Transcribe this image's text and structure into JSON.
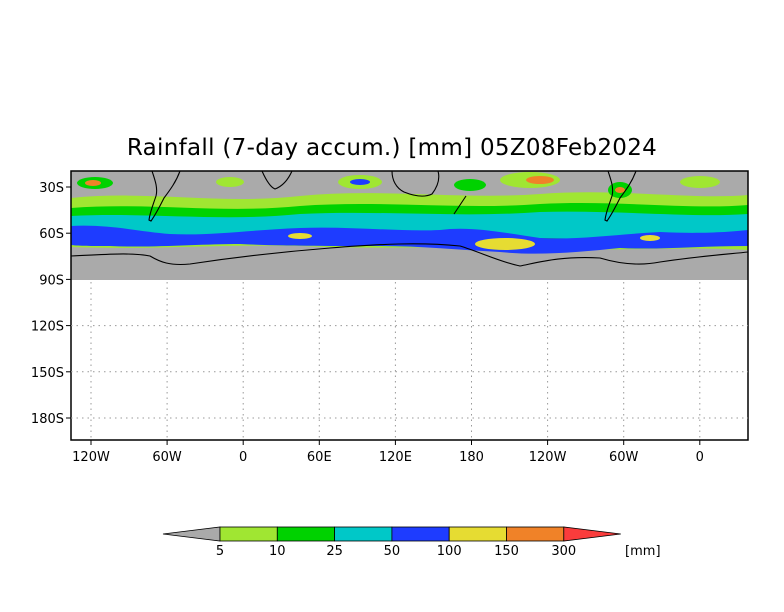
{
  "title": "Rainfall (7-day accum.) [mm] 05Z08Feb2024",
  "map": {
    "lat_ticks": [
      "30S",
      "60S",
      "90S",
      "120S",
      "150S",
      "180S"
    ],
    "lon_ticks": [
      "120W",
      "60W",
      "0",
      "60E",
      "120E",
      "180",
      "120W",
      "60W",
      "0"
    ],
    "gridlines": "dotted",
    "nodata_color": "#aaaaaa"
  },
  "colorbar": {
    "unit": "[mm]",
    "thresholds": [
      "5",
      "10",
      "25",
      "50",
      "100",
      "150",
      "300"
    ],
    "colors": [
      "#aaaaaa",
      "#a0e632",
      "#00d200",
      "#00c8c8",
      "#1e3cff",
      "#e6dc32",
      "#f08228",
      "#fa3c3c"
    ]
  }
}
